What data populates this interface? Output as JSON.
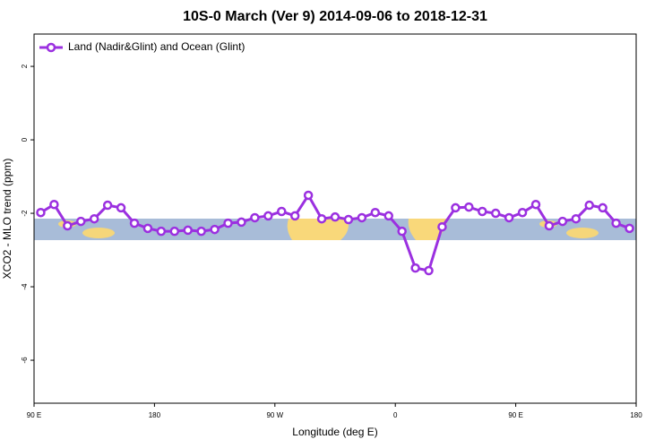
{
  "chart_data": {
    "type": "line",
    "title": "10S-0 March (Ver 9)   2014-09-06 to 2018-12-31",
    "x_label": "Longitude (deg E)",
    "y_label": "XCO2 - MLO trend (ppm)",
    "x": [
      95,
      105,
      115,
      125,
      135,
      145,
      155,
      165,
      175,
      185,
      195,
      205,
      215,
      225,
      235,
      245,
      255,
      265,
      275,
      285,
      295,
      305,
      315,
      325,
      335,
      345,
      355,
      365,
      375,
      385,
      395,
      405,
      415,
      425,
      435,
      445,
      455,
      465,
      475,
      485,
      495,
      505,
      515,
      525,
      535
    ],
    "series": [
      {
        "name": "Land (Nadir&Glint) and Ocean (Glint)",
        "color": "#9b30e0",
        "values": [
          -1.98,
          -1.76,
          -2.34,
          -2.22,
          -2.15,
          -1.78,
          -1.85,
          -2.27,
          -2.41,
          -2.49,
          -2.49,
          -2.46,
          -2.49,
          -2.44,
          -2.27,
          -2.24,
          -2.12,
          -2.07,
          -1.95,
          -2.07,
          -1.51,
          -2.15,
          -2.1,
          -2.17,
          -2.12,
          -1.98,
          -2.07,
          -2.49,
          -3.49,
          -3.56,
          -2.37,
          -1.85,
          -1.83,
          -1.95,
          -2.0,
          -2.12,
          -1.98,
          -1.76,
          -2.34,
          -2.22,
          -2.15,
          -1.78,
          -1.85,
          -2.27,
          -2.41
        ]
      }
    ],
    "xlim": [
      90,
      540
    ],
    "ylim": [
      -7.17,
      2.88
    ],
    "xticks": [
      {
        "value": 90,
        "label": "90 E"
      },
      {
        "value": 180,
        "label": "180"
      },
      {
        "value": 270,
        "label": "90 W"
      },
      {
        "value": 360,
        "label": "0"
      },
      {
        "value": 450,
        "label": "90 E"
      },
      {
        "value": 540,
        "label": "180"
      }
    ],
    "yticks": [
      -6,
      -4,
      -2,
      0,
      2
    ],
    "legend": "top-left"
  }
}
